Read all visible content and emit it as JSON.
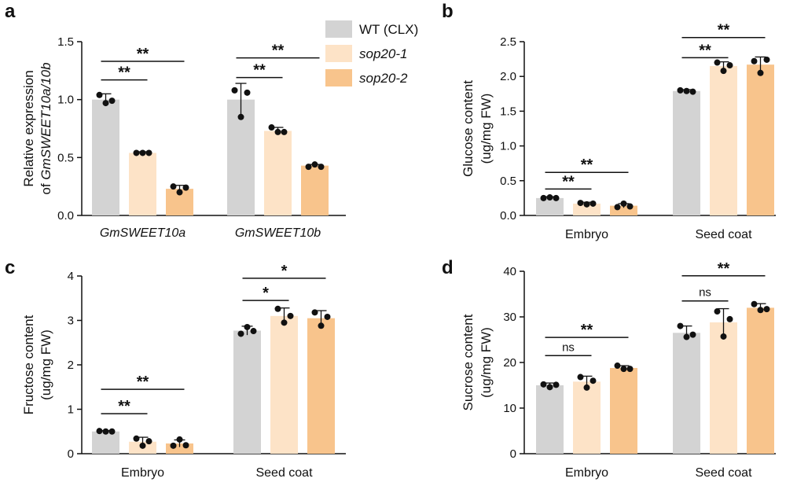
{
  "legend": {
    "entries": [
      {
        "label": "WT (CLX)",
        "italic": false,
        "color": "#d3d3d3"
      },
      {
        "label": "sop20-1",
        "italic": true,
        "color": "#fde3c7"
      },
      {
        "label": "sop20-2",
        "italic": true,
        "color": "#f8c48c"
      }
    ]
  },
  "colors": {
    "wt": "#d3d3d3",
    "sop20_1": "#fde3c7",
    "sop20_2": "#f8c48c",
    "axis": "#111111"
  },
  "chart_data": [
    {
      "panel": "a",
      "type": "bar",
      "ylabel_line1": "Relative expression",
      "ylabel_line2_prefix": "of ",
      "ylabel_line2_italic": "GmSWEET10a/10b",
      "ylim": [
        0,
        1.5
      ],
      "yticks": [
        "0.0",
        "0.5",
        "1.0",
        "1.5"
      ],
      "yticks_values": [
        0,
        0.5,
        1.0,
        1.5
      ],
      "categories": [
        "GmSWEET10a",
        "GmSWEET10b"
      ],
      "categories_italic": true,
      "series": [
        {
          "name": "WT (CLX)",
          "values": [
            1.0,
            1.0
          ],
          "errors": [
            0.05,
            0.14
          ],
          "points": [
            [
              1.04,
              0.97,
              0.99
            ],
            [
              1.08,
              0.85,
              1.06
            ]
          ]
        },
        {
          "name": "sop20-1",
          "values": [
            0.54,
            0.73
          ],
          "errors": [
            0.01,
            0.03
          ],
          "points": [
            [
              0.54,
              0.54,
              0.54
            ],
            [
              0.76,
              0.72,
              0.72
            ]
          ]
        },
        {
          "name": "sop20-2",
          "values": [
            0.23,
            0.43
          ],
          "errors": [
            0.03,
            0.01
          ],
          "points": [
            [
              0.25,
              0.2,
              0.24
            ],
            [
              0.42,
              0.44,
              0.42
            ]
          ]
        }
      ],
      "significance": [
        {
          "group": 0,
          "from": 0,
          "to": 1,
          "label": "**",
          "level": 1.17
        },
        {
          "group": 0,
          "from": 0,
          "to": 2,
          "label": "**",
          "level": 1.33
        },
        {
          "group": 1,
          "from": 0,
          "to": 1,
          "label": "**",
          "level": 1.19
        },
        {
          "group": 1,
          "from": 0,
          "to": 2,
          "label": "**",
          "level": 1.36
        }
      ]
    },
    {
      "panel": "b",
      "type": "bar",
      "ylabel_line1": "Glucose content",
      "ylabel_line2": "(ug/mg FW)",
      "ylim": [
        0,
        2.5
      ],
      "yticks": [
        "0.0",
        "0.5",
        "1.0",
        "1.5",
        "2.0",
        "2.5"
      ],
      "yticks_values": [
        0,
        0.5,
        1.0,
        1.5,
        2.0,
        2.5
      ],
      "categories": [
        "Embryo",
        "Seed coat"
      ],
      "series": [
        {
          "name": "WT (CLX)",
          "values": [
            0.25,
            1.79
          ],
          "errors": [
            0.02,
            0.02
          ],
          "points": [
            [
              0.25,
              0.26,
              0.25
            ],
            [
              1.8,
              1.79,
              1.78
            ]
          ]
        },
        {
          "name": "sop20-1",
          "values": [
            0.17,
            2.15
          ],
          "errors": [
            0.02,
            0.06
          ],
          "points": [
            [
              0.18,
              0.16,
              0.17
            ],
            [
              2.2,
              2.08,
              2.16
            ]
          ]
        },
        {
          "name": "sop20-2",
          "values": [
            0.14,
            2.17
          ],
          "errors": [
            0.03,
            0.11
          ],
          "points": [
            [
              0.12,
              0.17,
              0.13
            ],
            [
              2.22,
              2.05,
              2.24
            ]
          ]
        }
      ],
      "significance": [
        {
          "group": 0,
          "from": 0,
          "to": 1,
          "label": "**",
          "level": 0.38
        },
        {
          "group": 0,
          "from": 0,
          "to": 2,
          "label": "**",
          "level": 0.62
        },
        {
          "group": 1,
          "from": 0,
          "to": 1,
          "label": "**",
          "level": 2.27
        },
        {
          "group": 1,
          "from": 0,
          "to": 2,
          "label": "**",
          "level": 2.56
        }
      ]
    },
    {
      "panel": "c",
      "type": "bar",
      "ylabel_line1": "Fructose content",
      "ylabel_line2": "(ug/mg FW)",
      "ylim": [
        0,
        4
      ],
      "yticks": [
        "0",
        "1",
        "2",
        "3",
        "4"
      ],
      "yticks_values": [
        0,
        1,
        2,
        3,
        4
      ],
      "categories": [
        "Embryo",
        "Seed coat"
      ],
      "series": [
        {
          "name": "WT (CLX)",
          "values": [
            0.5,
            2.77
          ],
          "errors": [
            0.02,
            0.1
          ],
          "points": [
            [
              0.51,
              0.5,
              0.5
            ],
            [
              2.7,
              2.85,
              2.76
            ]
          ]
        },
        {
          "name": "sop20-1",
          "values": [
            0.27,
            3.1
          ],
          "errors": [
            0.1,
            0.18
          ],
          "points": [
            [
              0.34,
              0.18,
              0.28
            ],
            [
              3.26,
              2.95,
              3.1
            ]
          ]
        },
        {
          "name": "sop20-2",
          "values": [
            0.23,
            3.05
          ],
          "errors": [
            0.08,
            0.17
          ],
          "points": [
            [
              0.18,
              0.32,
              0.19
            ],
            [
              3.18,
              2.88,
              3.08
            ]
          ]
        }
      ],
      "significance": [
        {
          "group": 0,
          "from": 0,
          "to": 1,
          "label": "**",
          "level": 0.9
        },
        {
          "group": 0,
          "from": 0,
          "to": 2,
          "label": "**",
          "level": 1.45
        },
        {
          "group": 1,
          "from": 0,
          "to": 1,
          "label": "*",
          "level": 3.45
        },
        {
          "group": 1,
          "from": 0,
          "to": 2,
          "label": "*",
          "level": 3.95
        }
      ]
    },
    {
      "panel": "d",
      "type": "bar",
      "ylabel_line1": "Sucrose content",
      "ylabel_line2": "(ug/mg FW)",
      "ylim": [
        0,
        40
      ],
      "yticks": [
        "0",
        "10",
        "20",
        "30",
        "40"
      ],
      "yticks_values": [
        0,
        10,
        20,
        30,
        40
      ],
      "categories": [
        "Embryo",
        "Seed coat"
      ],
      "series": [
        {
          "name": "WT (CLX)",
          "values": [
            15,
            26.5
          ],
          "errors": [
            0.5,
            1.5
          ],
          "points": [
            [
              15.2,
              14.6,
              15.1
            ],
            [
              28.0,
              25.6,
              26.1
            ]
          ]
        },
        {
          "name": "sop20-1",
          "values": [
            15.8,
            28.8
          ],
          "errors": [
            1.2,
            3.0
          ],
          "points": [
            [
              16.8,
              14.5,
              16.0
            ],
            [
              31.2,
              25.7,
              29.5
            ]
          ]
        },
        {
          "name": "sop20-2",
          "values": [
            18.8,
            32
          ],
          "errors": [
            0.5,
            0.9
          ],
          "points": [
            [
              19.3,
              18.6,
              18.6
            ],
            [
              32.8,
              31.5,
              31.7
            ]
          ]
        }
      ],
      "significance": [
        {
          "group": 0,
          "from": 0,
          "to": 1,
          "label": "ns",
          "level": 21.5
        },
        {
          "group": 0,
          "from": 0,
          "to": 2,
          "label": "**",
          "level": 25.5
        },
        {
          "group": 1,
          "from": 0,
          "to": 1,
          "label": "ns",
          "level": 33.5
        },
        {
          "group": 1,
          "from": 0,
          "to": 2,
          "label": "**",
          "level": 39.0
        }
      ]
    }
  ]
}
